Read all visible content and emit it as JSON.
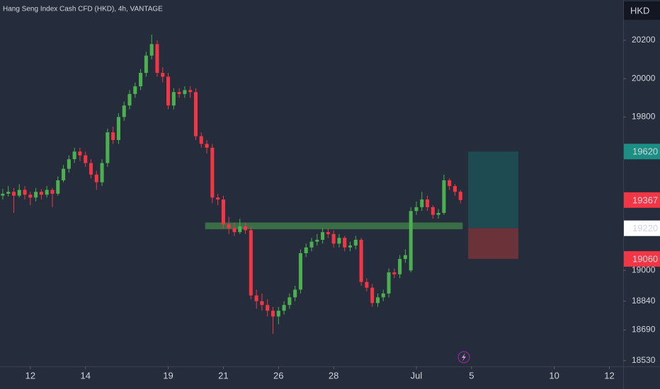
{
  "chart_data": {
    "type": "candlestick",
    "title": "Hang Seng Index Cash CFD (HKD), 4h, VANTAGE",
    "currency": "HKD",
    "up_color": "#4caf50",
    "down_color": "#f23645",
    "ylim": [
      18500,
      20410
    ],
    "yticks": [
      18530,
      18690,
      18840,
      19000,
      19800,
      20000,
      20200
    ],
    "xlim": [
      -0.5,
      112.5
    ],
    "xticks": [
      {
        "value": 5,
        "label": "12"
      },
      {
        "value": 15,
        "label": "14"
      },
      {
        "value": 30,
        "label": "19"
      },
      {
        "value": 40,
        "label": "21"
      },
      {
        "value": 50,
        "label": "26"
      },
      {
        "value": 60,
        "label": "28"
      },
      {
        "value": 75,
        "label": "Jul"
      },
      {
        "value": 85,
        "label": "5"
      },
      {
        "value": 100,
        "label": "10"
      },
      {
        "value": 110,
        "label": "12"
      }
    ],
    "ohlc": [
      [
        19390,
        19425,
        19370,
        19400
      ],
      [
        19400,
        19440,
        19385,
        19410
      ],
      [
        19410,
        19430,
        19300,
        19390
      ],
      [
        19390,
        19450,
        19380,
        19420
      ],
      [
        19420,
        19440,
        19370,
        19395
      ],
      [
        19395,
        19410,
        19340,
        19380
      ],
      [
        19380,
        19430,
        19360,
        19410
      ],
      [
        19410,
        19425,
        19370,
        19395
      ],
      [
        19395,
        19440,
        19380,
        19420
      ],
      [
        19420,
        19430,
        19330,
        19400
      ],
      [
        19400,
        19490,
        19390,
        19470
      ],
      [
        19470,
        19550,
        19460,
        19530
      ],
      [
        19530,
        19600,
        19510,
        19580
      ],
      [
        19580,
        19640,
        19560,
        19620
      ],
      [
        19620,
        19640,
        19570,
        19600
      ],
      [
        19600,
        19620,
        19540,
        19560
      ],
      [
        19560,
        19580,
        19480,
        19500
      ],
      [
        19500,
        19520,
        19420,
        19460
      ],
      [
        19460,
        19580,
        19440,
        19560
      ],
      [
        19560,
        19740,
        19540,
        19720
      ],
      [
        19720,
        19750,
        19660,
        19680
      ],
      [
        19680,
        19820,
        19660,
        19800
      ],
      [
        19800,
        19880,
        19780,
        19860
      ],
      [
        19860,
        19940,
        19840,
        19920
      ],
      [
        19920,
        19980,
        19900,
        19960
      ],
      [
        19960,
        20050,
        19940,
        20030
      ],
      [
        20030,
        20140,
        20010,
        20120
      ],
      [
        20120,
        20230,
        20100,
        20180
      ],
      [
        20180,
        20200,
        20010,
        20030
      ],
      [
        20030,
        20060,
        19980,
        20010
      ],
      [
        20010,
        20030,
        19840,
        19860
      ],
      [
        19860,
        19950,
        19840,
        19930
      ],
      [
        19930,
        19950,
        19900,
        19920
      ],
      [
        19920,
        19960,
        19900,
        19940
      ],
      [
        19940,
        19960,
        19900,
        19930
      ],
      [
        19930,
        19950,
        19680,
        19700
      ],
      [
        19700,
        19720,
        19640,
        19660
      ],
      [
        19660,
        19680,
        19610,
        19640
      ],
      [
        19640,
        19660,
        19350,
        19380
      ],
      [
        19380,
        19400,
        19340,
        19370
      ],
      [
        19370,
        19390,
        19220,
        19240
      ],
      [
        19240,
        19280,
        19190,
        19220
      ],
      [
        19220,
        19250,
        19180,
        19200
      ],
      [
        19200,
        19270,
        19190,
        19230
      ],
      [
        19230,
        19250,
        19190,
        19210
      ],
      [
        19210,
        19230,
        18850,
        18870
      ],
      [
        18870,
        18900,
        18800,
        18840
      ],
      [
        18840,
        18880,
        18790,
        18820
      ],
      [
        18820,
        18850,
        18760,
        18790
      ],
      [
        18790,
        18810,
        18670,
        18760
      ],
      [
        18760,
        18810,
        18720,
        18790
      ],
      [
        18790,
        18840,
        18770,
        18820
      ],
      [
        18820,
        18880,
        18800,
        18860
      ],
      [
        18860,
        18920,
        18840,
        18900
      ],
      [
        18900,
        19110,
        18880,
        19090
      ],
      [
        19090,
        19140,
        19070,
        19120
      ],
      [
        19120,
        19170,
        19100,
        19150
      ],
      [
        19150,
        19190,
        19130,
        19160
      ],
      [
        19160,
        19220,
        19140,
        19200
      ],
      [
        19200,
        19220,
        19170,
        19190
      ],
      [
        19190,
        19210,
        19120,
        19140
      ],
      [
        19140,
        19190,
        19120,
        19170
      ],
      [
        19170,
        19180,
        19100,
        19120
      ],
      [
        19120,
        19150,
        19100,
        19130
      ],
      [
        19130,
        19180,
        19110,
        19160
      ],
      [
        19160,
        19170,
        18920,
        18940
      ],
      [
        18940,
        18960,
        18890,
        18910
      ],
      [
        18910,
        18930,
        18810,
        18830
      ],
      [
        18830,
        18880,
        18810,
        18860
      ],
      [
        18860,
        18900,
        18840,
        18880
      ],
      [
        18880,
        19010,
        18860,
        18990
      ],
      [
        18990,
        19010,
        18960,
        18980
      ],
      [
        18980,
        19080,
        18960,
        19060
      ],
      [
        19060,
        19110,
        19040,
        19080
      ],
      [
        19000,
        19330,
        18990,
        19310
      ],
      [
        19310,
        19360,
        19290,
        19330
      ],
      [
        19330,
        19410,
        19310,
        19370
      ],
      [
        19370,
        19390,
        19310,
        19330
      ],
      [
        19330,
        19340,
        19270,
        19290
      ],
      [
        19290,
        19320,
        19270,
        19300
      ],
      [
        19300,
        19500,
        19290,
        19470
      ],
      [
        19470,
        19480,
        19420,
        19440
      ],
      [
        19440,
        19450,
        19390,
        19410
      ],
      [
        19410,
        19420,
        19350,
        19367
      ]
    ],
    "support_zone": {
      "low": 19215,
      "high": 19250,
      "x_range": [
        36.7,
        83.4
      ],
      "color": "#3d7a4a"
    },
    "position": {
      "target": 19620,
      "entry": 19220,
      "stop": 19060,
      "x_range": [
        84.4,
        93.5
      ],
      "profit_color": "#1e4a52",
      "loss_color": "#6b3339"
    },
    "price_labels": [
      {
        "value": 19620,
        "color": "#1b8f84",
        "text_color": "#ffffff"
      },
      {
        "value": 19367,
        "color": "#f23645",
        "text_color": "#ffffff"
      },
      {
        "value": 19220,
        "color": "#ffffff",
        "text_color": "#131722"
      },
      {
        "value": 19060,
        "color": "#f23645",
        "text_color": "#ffffff"
      }
    ]
  }
}
